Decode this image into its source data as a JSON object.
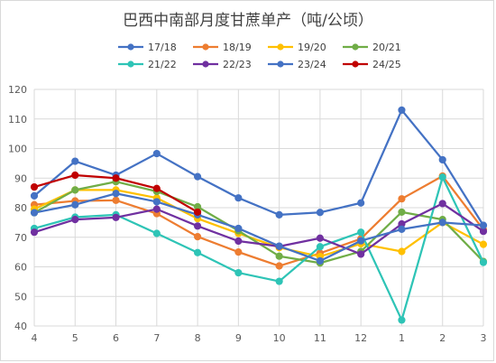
{
  "chart_data": {
    "type": "line",
    "title": "巴西中南部月度甘蔗单产（吨/公顷）",
    "xlabel": "",
    "ylabel": "",
    "categories": [
      "4",
      "5",
      "6",
      "7",
      "8",
      "9",
      "10",
      "11",
      "12",
      "1",
      "2",
      "3"
    ],
    "ylim": [
      40,
      120
    ],
    "yticks": [
      40,
      50,
      60,
      70,
      80,
      90,
      100,
      110,
      120
    ],
    "grid": true,
    "legend_position": "top",
    "series": [
      {
        "name": "17/18",
        "color": "#4472C4",
        "values": [
          84.0,
          95.7,
          91.0,
          98.3,
          90.5,
          83.3,
          77.6,
          78.4,
          81.6,
          113.0,
          96.2,
          74.0
        ]
      },
      {
        "name": "18/19",
        "color": "#ED7D31",
        "values": [
          81.0,
          82.3,
          82.5,
          78.0,
          70.2,
          65.0,
          60.3,
          64.6,
          69.5,
          83.0,
          90.7,
          72.6
        ]
      },
      {
        "name": "19/20",
        "color": "#FFC000",
        "values": [
          79.5,
          86.0,
          86.0,
          83.3,
          76.3,
          71.3,
          66.5,
          63.5,
          67.8,
          65.2,
          75.0,
          67.6
        ]
      },
      {
        "name": "20/21",
        "color": "#70AD47",
        "values": [
          78.3,
          86.0,
          88.8,
          85.5,
          80.3,
          72.2,
          63.6,
          61.3,
          65.2,
          78.5,
          76.0,
          61.8
        ]
      },
      {
        "name": "21/22",
        "color": "#2EC4B6",
        "values": [
          73.0,
          76.8,
          77.6,
          71.3,
          64.8,
          58.0,
          55.1,
          66.8,
          71.7,
          42.0,
          90.3,
          61.5
        ]
      },
      {
        "name": "22/23",
        "color": "#7030A0",
        "values": [
          71.7,
          76.0,
          76.7,
          79.5,
          73.8,
          68.7,
          66.9,
          69.7,
          64.3,
          74.5,
          81.4,
          72.0
        ]
      },
      {
        "name": "23/24",
        "color": "#4472C4",
        "values": [
          78.3,
          81.0,
          84.8,
          82.0,
          77.6,
          73.0,
          67.0,
          62.0,
          68.8,
          72.7,
          75.0,
          74.0
        ]
      },
      {
        "name": "24/25",
        "color": "#C00000",
        "values": [
          87.0,
          91.0,
          90.0,
          86.5,
          78.5,
          null,
          null,
          null,
          null,
          null,
          null,
          null
        ]
      }
    ]
  }
}
